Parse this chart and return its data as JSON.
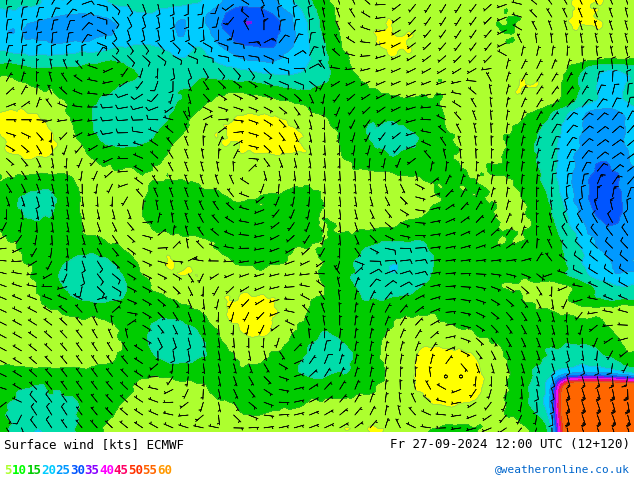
{
  "title_left": "Surface wind [kts] ECMWF",
  "title_right": "Fr 27-09-2024 12:00 UTC (12+120)",
  "credit": "@weatheronline.co.uk",
  "legend_values": [
    "5",
    "10",
    "15",
    "20",
    "25",
    "30",
    "35",
    "40",
    "45",
    "50",
    "55",
    "60"
  ],
  "legend_colors": [
    "#adff2f",
    "#00ff00",
    "#00cc00",
    "#00ccff",
    "#0099ff",
    "#0055ff",
    "#8800ff",
    "#ff00ff",
    "#ff0066",
    "#ff3300",
    "#ff6600",
    "#ff9900"
  ],
  "wind_levels": [
    0,
    5,
    10,
    15,
    20,
    25,
    30,
    35,
    40,
    45,
    50,
    55,
    60,
    80
  ],
  "wind_colors": [
    "#ffff00",
    "#ffff00",
    "#adff2f",
    "#00cc00",
    "#00ddaa",
    "#00ccff",
    "#0099ff",
    "#0055ff",
    "#8800ff",
    "#ff00ff",
    "#ff0066",
    "#ff3300",
    "#ff6600"
  ],
  "figsize": [
    6.34,
    4.9
  ],
  "dpi": 100,
  "font_size_label": 9,
  "font_size_legend": 9
}
